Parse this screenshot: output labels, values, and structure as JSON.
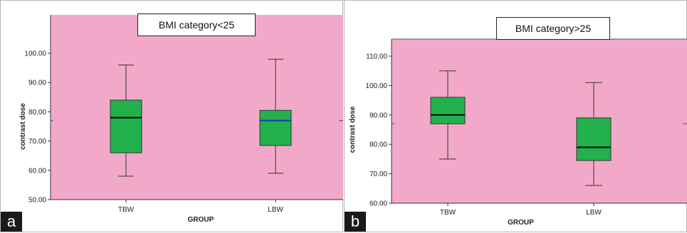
{
  "panels": [
    {
      "letter": "a",
      "title": "BMI category<25"
    },
    {
      "letter": "b",
      "title": "BMI category>25"
    }
  ],
  "colors": {
    "plot_background": "#f2a9c9",
    "box_fill": "#22b14c",
    "median_blue": "#1f3fb0",
    "median_black": "#111111",
    "reference_line": "#3a5fcd"
  },
  "chart_data": [
    {
      "type": "box",
      "title": "BMI category<25",
      "xlabel": "GROUP",
      "ylabel": "contrast dose",
      "categories": [
        "TBW",
        "LBW"
      ],
      "ylim": [
        50,
        100
      ],
      "yticks": [
        "50.00",
        "60.00",
        "70.00",
        "80.00",
        "90.00",
        "100.00"
      ],
      "boxes": [
        {
          "category": "TBW",
          "min": 58,
          "q1": 66,
          "median": 78,
          "q3": 84,
          "max": 96
        },
        {
          "category": "LBW",
          "min": 59,
          "q1": 68.5,
          "median": 77,
          "q3": 80.5,
          "max": 98
        }
      ],
      "reference_line": 77,
      "grid": false
    },
    {
      "type": "box",
      "title": "BMI category>25",
      "xlabel": "GROUP",
      "ylabel": "contrast dose",
      "categories": [
        "TBW",
        "LBW"
      ],
      "ylim": [
        60,
        110
      ],
      "yticks": [
        "60.00",
        "70.00",
        "80.00",
        "90.00",
        "100.00",
        "110.00"
      ],
      "boxes": [
        {
          "category": "TBW",
          "min": 75,
          "q1": 87,
          "median": 90,
          "q3": 96,
          "max": 105
        },
        {
          "category": "LBW",
          "min": 66,
          "q1": 74.5,
          "median": 79,
          "q3": 89,
          "max": 101
        }
      ],
      "reference_line": 87,
      "grid": false
    }
  ]
}
